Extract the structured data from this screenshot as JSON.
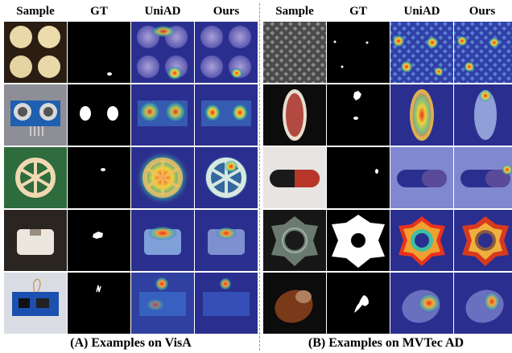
{
  "headers": {
    "visa": [
      "Sample",
      "GT",
      "UniAD",
      "Ours"
    ],
    "mvtec": [
      "Sample",
      "GT",
      "UniAD",
      "Ours"
    ]
  },
  "captions": {
    "visa": "(A) Examples on VisA",
    "mvtec": "(B) Examples on MVTec AD"
  },
  "colors": {
    "heatmap_cold": "#2a2f8f",
    "heatmap_hot": "#e8321e",
    "gt_background": "#000000",
    "gt_mask": "#ffffff"
  }
}
